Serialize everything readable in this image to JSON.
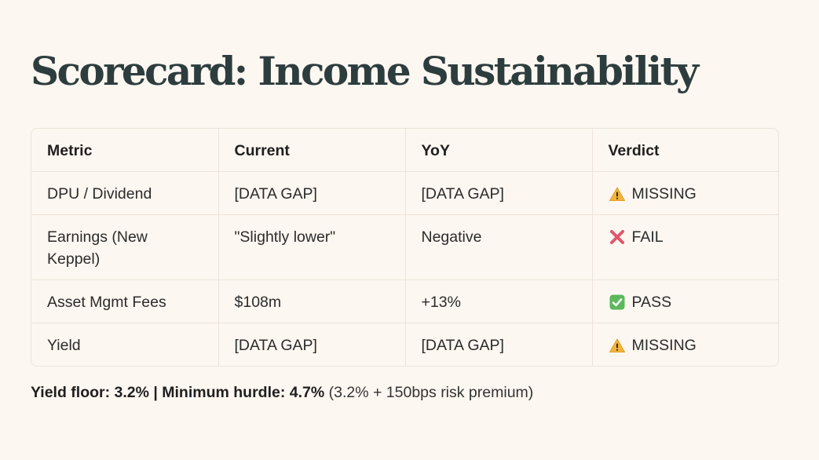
{
  "title": "Scorecard: Income Sustainability",
  "table": {
    "headers": [
      "Metric",
      "Current",
      "YoY",
      "Verdict"
    ],
    "rows": [
      {
        "metric": "DPU / Dividend",
        "current": "[DATA GAP]",
        "yoy": "[DATA GAP]",
        "verdict": "MISSING",
        "verdict_icon": "warning-icon"
      },
      {
        "metric": "Earnings (New Keppel)",
        "current": "\"Slightly lower\"",
        "yoy": "Negative",
        "verdict": "FAIL",
        "verdict_icon": "cross-icon"
      },
      {
        "metric": "Asset Mgmt Fees",
        "current": "$108m",
        "yoy": "+13%",
        "verdict": "PASS",
        "verdict_icon": "check-icon"
      },
      {
        "metric": "Yield",
        "current": "[DATA GAP]",
        "yoy": "[DATA GAP]",
        "verdict": "MISSING",
        "verdict_icon": "warning-icon"
      }
    ]
  },
  "footer": {
    "bold_text": "Yield floor: 3.2% | Minimum hurdle: 4.7%",
    "normal_text": " (3.2% + 150bps risk premium)"
  },
  "colors": {
    "background": "#fdf7f1",
    "title": "#2d3d3e",
    "warning": "#f2b43c",
    "fail": "#e0566b",
    "pass": "#5bb85b"
  }
}
